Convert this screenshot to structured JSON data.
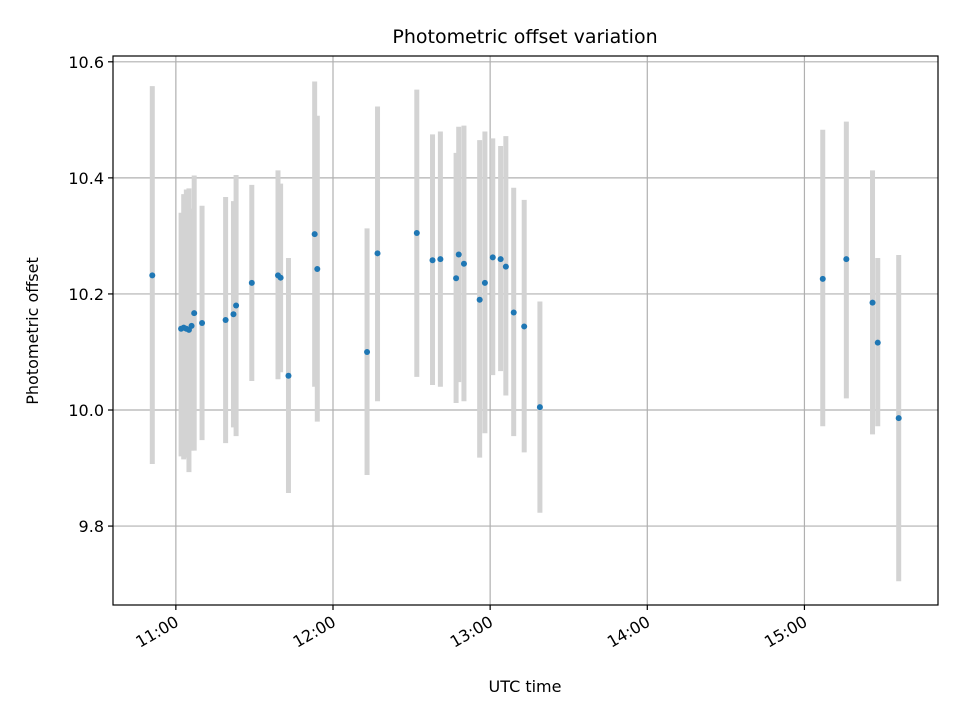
{
  "chart_data": {
    "type": "scatter",
    "title": "Photometric offset variation",
    "xlabel": "UTC time",
    "ylabel": "Photometric offset",
    "xlim": [
      "10:36",
      "15:51"
    ],
    "ylim": [
      9.664,
      10.61
    ],
    "xticks": [
      "11:00",
      "12:00",
      "13:00",
      "14:00",
      "15:00"
    ],
    "yticks": [
      "9.8",
      "10.0",
      "10.2",
      "10.4",
      "10.6"
    ],
    "grid": true,
    "colors": {
      "points": "#1f77b4",
      "errorbars": "#d3d3d3",
      "grid": "#b0b0b0"
    },
    "points": [
      {
        "time": "10:51",
        "y": 10.232,
        "err_low": 9.907,
        "err_high": 10.558
      },
      {
        "time": "11:02",
        "y": 10.14,
        "err_low": 9.92,
        "err_high": 10.34
      },
      {
        "time": "11:03",
        "y": 10.142,
        "err_low": 9.915,
        "err_high": 10.372
      },
      {
        "time": "11:04",
        "y": 10.14,
        "err_low": 9.918,
        "err_high": 10.38
      },
      {
        "time": "11:05",
        "y": 10.138,
        "err_low": 9.893,
        "err_high": 10.382
      },
      {
        "time": "11:06",
        "y": 10.145,
        "err_low": 9.93,
        "err_high": 10.347
      },
      {
        "time": "11:07",
        "y": 10.167,
        "err_low": 9.93,
        "err_high": 10.404
      },
      {
        "time": "11:10",
        "y": 10.15,
        "err_low": 9.948,
        "err_high": 10.352
      },
      {
        "time": "11:19",
        "y": 10.155,
        "err_low": 9.943,
        "err_high": 10.367
      },
      {
        "time": "11:22",
        "y": 10.165,
        "err_low": 9.97,
        "err_high": 10.36
      },
      {
        "time": "11:23",
        "y": 10.18,
        "err_low": 9.955,
        "err_high": 10.405
      },
      {
        "time": "11:29",
        "y": 10.219,
        "err_low": 10.05,
        "err_high": 10.388
      },
      {
        "time": "11:39",
        "y": 10.232,
        "err_low": 10.053,
        "err_high": 10.413
      },
      {
        "time": "11:40",
        "y": 10.228,
        "err_low": 10.065,
        "err_high": 10.39
      },
      {
        "time": "11:43",
        "y": 10.059,
        "err_low": 9.857,
        "err_high": 10.262
      },
      {
        "time": "11:53",
        "y": 10.303,
        "err_low": 10.04,
        "err_high": 10.566
      },
      {
        "time": "11:54",
        "y": 10.243,
        "err_low": 9.98,
        "err_high": 10.507
      },
      {
        "time": "12:13",
        "y": 10.1,
        "err_low": 9.888,
        "err_high": 10.313
      },
      {
        "time": "12:17",
        "y": 10.27,
        "err_low": 10.015,
        "err_high": 10.523
      },
      {
        "time": "12:32",
        "y": 10.305,
        "err_low": 10.057,
        "err_high": 10.552
      },
      {
        "time": "12:38",
        "y": 10.258,
        "err_low": 10.043,
        "err_high": 10.475
      },
      {
        "time": "12:41",
        "y": 10.26,
        "err_low": 10.04,
        "err_high": 10.48
      },
      {
        "time": "12:47",
        "y": 10.227,
        "err_low": 10.012,
        "err_high": 10.443
      },
      {
        "time": "12:48",
        "y": 10.268,
        "err_low": 10.048,
        "err_high": 10.488
      },
      {
        "time": "12:50",
        "y": 10.252,
        "err_low": 10.015,
        "err_high": 10.49
      },
      {
        "time": "12:56",
        "y": 10.19,
        "err_low": 9.918,
        "err_high": 10.465
      },
      {
        "time": "12:58",
        "y": 10.219,
        "err_low": 9.96,
        "err_high": 10.48
      },
      {
        "time": "13:01",
        "y": 10.263,
        "err_low": 10.06,
        "err_high": 10.468
      },
      {
        "time": "13:04",
        "y": 10.26,
        "err_low": 10.067,
        "err_high": 10.455
      },
      {
        "time": "13:06",
        "y": 10.247,
        "err_low": 10.025,
        "err_high": 10.472
      },
      {
        "time": "13:09",
        "y": 10.168,
        "err_low": 9.955,
        "err_high": 10.383
      },
      {
        "time": "13:13",
        "y": 10.144,
        "err_low": 9.927,
        "err_high": 10.362
      },
      {
        "time": "13:19",
        "y": 10.005,
        "err_low": 9.823,
        "err_high": 10.187
      },
      {
        "time": "15:07",
        "y": 10.226,
        "err_low": 9.972,
        "err_high": 10.483
      },
      {
        "time": "15:16",
        "y": 10.26,
        "err_low": 10.02,
        "err_high": 10.497
      },
      {
        "time": "15:26",
        "y": 10.185,
        "err_low": 9.958,
        "err_high": 10.413
      },
      {
        "time": "15:28",
        "y": 10.116,
        "err_low": 9.972,
        "err_high": 10.262
      },
      {
        "time": "15:36",
        "y": 9.986,
        "err_low": 9.705,
        "err_high": 10.267
      }
    ]
  }
}
